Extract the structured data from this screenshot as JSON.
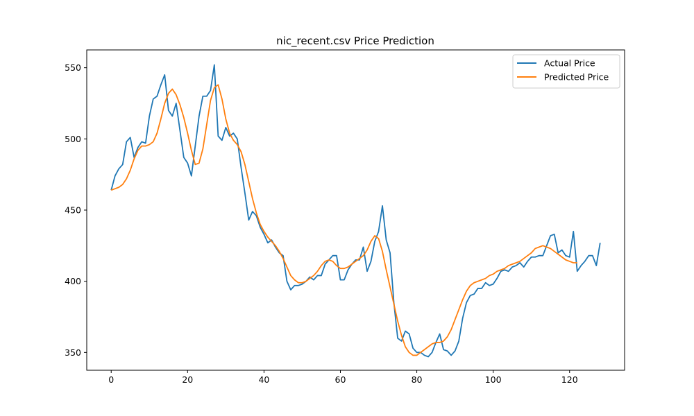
{
  "chart_data": {
    "type": "line",
    "title": "nic_recent.csv Price Prediction",
    "xlabel": "",
    "ylabel": "",
    "xlim": [
      -6.4,
      134.4
    ],
    "ylim": [
      337.5,
      562.5
    ],
    "xticks": [
      0,
      20,
      40,
      60,
      80,
      100,
      120
    ],
    "yticks": [
      350,
      400,
      450,
      500,
      550
    ],
    "grid": false,
    "legend": {
      "placement": "top-right"
    },
    "series": [
      {
        "name": "Actual Price",
        "color": "#1f77b4",
        "values": [
          464,
          474,
          479,
          482,
          498,
          501,
          487,
          494,
          498,
          497,
          516,
          528,
          530,
          538,
          545,
          520,
          516,
          525,
          506,
          487,
          483,
          474,
          495,
          516,
          530,
          530,
          534,
          552,
          502,
          499,
          508,
          502,
          504,
          500,
          480,
          462,
          443,
          449,
          446,
          438,
          433,
          427,
          429,
          424,
          420,
          418,
          400,
          394,
          397,
          397,
          398,
          400,
          403,
          401,
          404,
          404,
          412,
          415,
          418,
          418,
          401,
          401,
          408,
          412,
          415,
          415,
          424,
          407,
          414,
          428,
          435,
          453,
          429,
          420,
          385,
          360,
          358,
          365,
          363,
          353,
          350,
          350,
          348,
          347,
          350,
          357,
          363,
          352,
          351,
          348,
          351,
          358,
          374,
          385,
          390,
          391,
          395,
          395,
          399,
          397,
          398,
          402,
          407,
          408,
          407,
          410,
          411,
          413,
          410,
          414,
          417,
          417,
          418,
          418,
          425,
          432,
          433,
          420,
          422,
          418,
          417,
          435,
          407,
          411,
          414,
          418,
          418,
          411,
          427
        ]
      },
      {
        "name": "Predicted Price",
        "color": "#ff7f0e",
        "values": [
          464,
          465,
          466,
          468,
          472,
          478,
          486,
          492,
          495,
          495,
          496,
          498,
          504,
          514,
          525,
          532,
          535,
          531,
          524,
          515,
          504,
          492,
          482,
          483,
          493,
          510,
          527,
          536,
          538,
          528,
          514,
          504,
          499,
          496,
          491,
          482,
          470,
          458,
          448,
          440,
          435,
          431,
          428,
          425,
          421,
          416,
          410,
          404,
          401,
          399,
          399,
          400,
          402,
          404,
          407,
          411,
          414,
          415,
          414,
          411,
          409,
          409,
          410,
          412,
          414,
          416,
          418,
          422,
          428,
          432,
          430,
          421,
          408,
          396,
          384,
          372,
          362,
          354,
          350,
          348,
          348,
          350,
          352,
          354,
          356,
          357,
          357,
          358,
          361,
          366,
          373,
          380,
          387,
          393,
          397,
          399,
          400,
          401,
          402,
          404,
          405,
          407,
          408,
          409,
          411,
          412,
          413,
          414,
          416,
          418,
          420,
          423,
          424,
          425,
          424,
          423,
          421,
          419,
          417,
          415,
          414,
          413,
          413
        ],
        "x_start": 0
      }
    ]
  }
}
